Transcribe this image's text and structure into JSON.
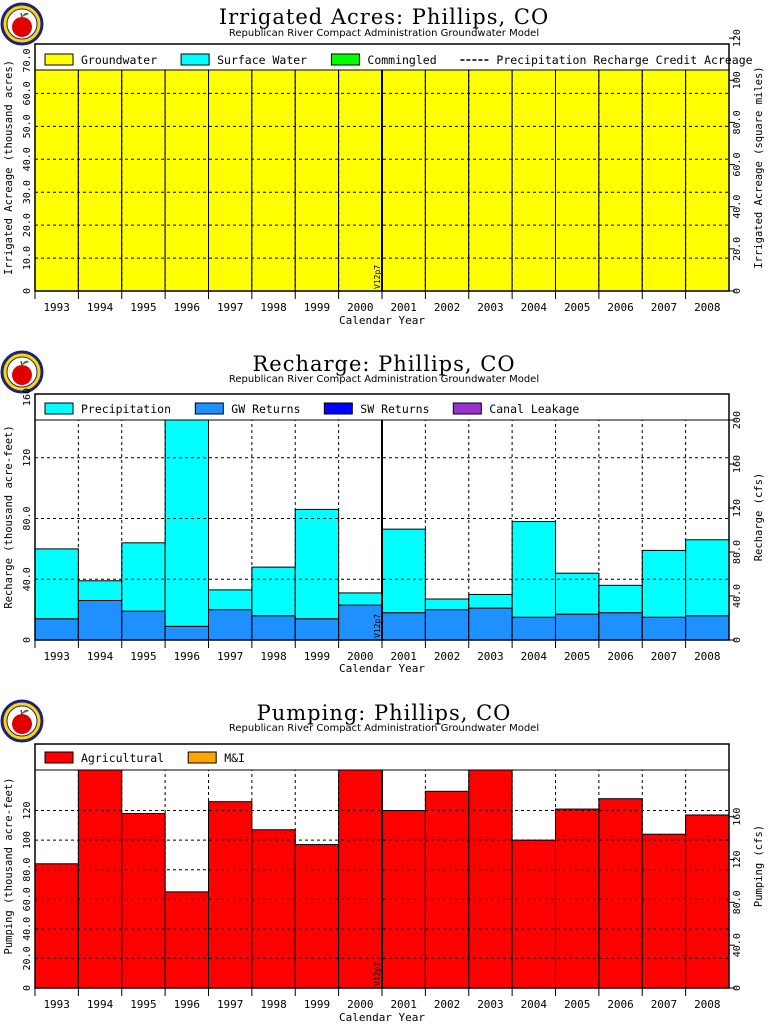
{
  "chart_data": [
    {
      "type": "bar",
      "title": "Irrigated Acres: Phillips, CO",
      "subtitle": "Republican River Compact Administration Groundwater Model",
      "xlabel": "Calendar Year",
      "ylabel": "Irrigated Acreage (thousand acres)",
      "y2label": "Irrigated Acreage (square miles)",
      "ylim": [
        0,
        75
      ],
      "y2lim": [
        0,
        117.2
      ],
      "yticks": [
        "0",
        "10.0",
        "20.0",
        "30.0",
        "40.0",
        "50.0",
        "60.0",
        "70.0"
      ],
      "y2ticks": [
        "0",
        "20.0",
        "40.0",
        "60.0",
        "80.0",
        "100",
        "120"
      ],
      "y2tickvalues": [
        0,
        20,
        40,
        60,
        80,
        100,
        120
      ],
      "categories": [
        "1993",
        "1994",
        "1995",
        "1996",
        "1997",
        "1998",
        "1999",
        "2000",
        "2001",
        "2002",
        "2003",
        "2004",
        "2005",
        "2006",
        "2007",
        "2008"
      ],
      "legend": "top",
      "stage_marker": {
        "label": "V12p7",
        "after_category": "2000"
      },
      "series": [
        {
          "name": "Groundwater",
          "color": "#ffff00",
          "values": [
            75,
            75,
            75,
            75,
            75,
            75,
            75,
            75,
            68.2,
            67.5,
            68.5,
            68.8,
            70.7,
            70.3,
            67.3,
            67.2
          ]
        },
        {
          "name": "Surface Water",
          "color": "#00ffff",
          "values": [
            0,
            0,
            0,
            0,
            0,
            0,
            0,
            0,
            0,
            0,
            0,
            0,
            0,
            0,
            0,
            0
          ]
        },
        {
          "name": "Commingled",
          "color": "#00ff00",
          "values": [
            0,
            0,
            0,
            0,
            0,
            0,
            0,
            0,
            0,
            0,
            0,
            0,
            0,
            0,
            0,
            0
          ]
        }
      ],
      "lines": [
        {
          "name": "Precipitation Recharge Credit Acreage",
          "values": [
            74.8,
            74.8,
            74.8,
            74.8,
            74.8,
            74.8,
            74.8,
            74.8,
            68.6,
            68,
            69,
            69.3,
            71.2,
            70.8,
            67.8,
            67.7
          ]
        }
      ]
    },
    {
      "type": "bar",
      "title": "Recharge: Phillips, CO",
      "subtitle": "Republican River Compact Administration Groundwater Model",
      "xlabel": "Calendar Year",
      "ylabel": "Recharge (thousand acre-feet)",
      "y2label": "Recharge (cfs)",
      "ylim": [
        0,
        162
      ],
      "y2lim": [
        0,
        223.7
      ],
      "yticks": [
        "0",
        "40.0",
        "80.0",
        "120",
        "160"
      ],
      "ytickvalues": [
        0,
        40,
        80,
        120,
        160
      ],
      "y2ticks": [
        "0",
        "40.0",
        "80.0",
        "120",
        "160",
        "200"
      ],
      "y2tickvalues": [
        0,
        40,
        80,
        120,
        160,
        200
      ],
      "categories": [
        "1993",
        "1994",
        "1995",
        "1996",
        "1997",
        "1998",
        "1999",
        "2000",
        "2001",
        "2002",
        "2003",
        "2004",
        "2005",
        "2006",
        "2007",
        "2008"
      ],
      "legend": "top",
      "stage_marker": {
        "label": "V12p7",
        "after_category": "2000"
      },
      "series": [
        {
          "name": "GW Returns",
          "color": "#1e90ff",
          "values": [
            14,
            26,
            19,
            9,
            20,
            16,
            14,
            23,
            18,
            20,
            21,
            15,
            17,
            18,
            15,
            16
          ]
        },
        {
          "name": "Precipitation",
          "color": "#00ffff",
          "values": [
            46,
            13,
            45,
            149,
            13,
            32,
            72,
            8,
            55,
            7,
            9,
            63,
            27,
            18,
            44,
            50
          ]
        },
        {
          "name": "SW Returns",
          "color": "#0000ff",
          "values": [
            0,
            0,
            0,
            0,
            0,
            0,
            0,
            0,
            0,
            0,
            0,
            0,
            0,
            0,
            0,
            0
          ]
        },
        {
          "name": "Canal Leakage",
          "color": "#9932cc",
          "values": [
            0,
            0,
            0,
            0,
            0,
            0,
            0,
            0,
            0,
            0,
            0,
            0,
            0,
            0,
            0,
            0
          ]
        }
      ],
      "legend_order": [
        "Precipitation",
        "GW Returns",
        "SW Returns",
        "Canal Leakage"
      ]
    },
    {
      "type": "bar",
      "title": "Pumping: Phillips, CO",
      "subtitle": "Republican River Compact Administration Groundwater Model",
      "xlabel": "Calendar Year",
      "ylabel": "Pumping (thousand acre-feet)",
      "y2label": "Pumping (cfs)",
      "ylim": [
        0,
        165
      ],
      "y2lim": [
        0,
        227.9
      ],
      "yticks": [
        "0",
        "20.0",
        "40.0",
        "60.0",
        "80.0",
        "100",
        "120"
      ],
      "ytickvalues": [
        0,
        20,
        40,
        60,
        80,
        100,
        120
      ],
      "y2ticks": [
        "0",
        "40.0",
        "80.0",
        "120",
        "160"
      ],
      "y2tickvalues": [
        0,
        40,
        80,
        120,
        160
      ],
      "categories": [
        "1993",
        "1994",
        "1995",
        "1996",
        "1997",
        "1998",
        "1999",
        "2000",
        "2001",
        "2002",
        "2003",
        "2004",
        "2005",
        "2006",
        "2007",
        "2008"
      ],
      "legend": "top",
      "stage_marker": {
        "label": "V12p7",
        "after_category": "2000"
      },
      "series": [
        {
          "name": "Agricultural",
          "color": "#ff0000",
          "values": [
            84,
            163,
            118,
            65,
            126,
            107,
            97,
            163,
            120,
            133,
            150,
            100,
            121,
            128,
            104,
            117
          ]
        },
        {
          "name": "M&I",
          "color": "#ffa500",
          "values": [
            0,
            0,
            0,
            0,
            0,
            0,
            0,
            0,
            0,
            0,
            0,
            0,
            0,
            0,
            0,
            0
          ]
        }
      ]
    }
  ]
}
